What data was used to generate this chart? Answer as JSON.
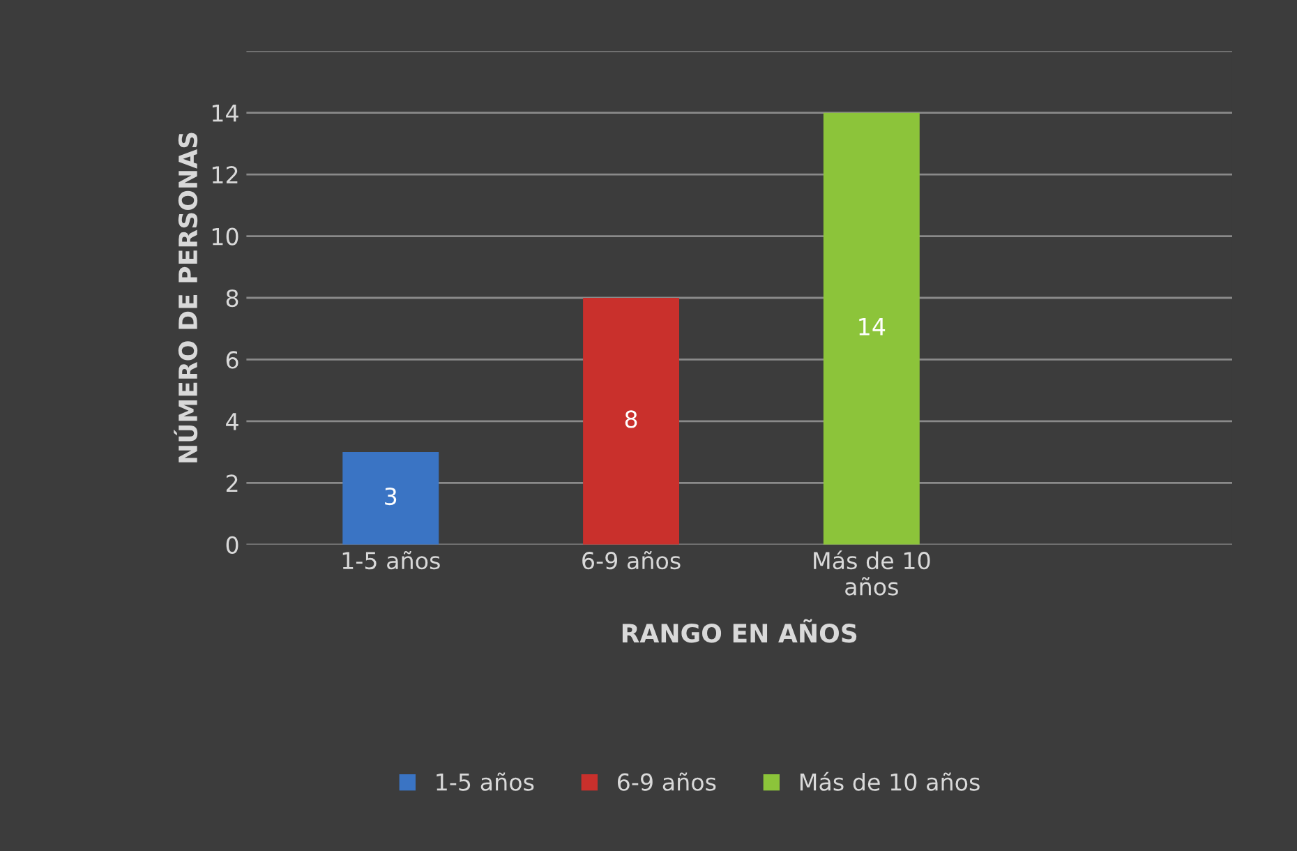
{
  "chart_data": {
    "type": "bar",
    "xlabel": "RANGO EN AÑOS",
    "ylabel": "NÚMERO DE PERSONAS",
    "categories": [
      "1-5 años",
      "6-9 años",
      "Más de 10\naños"
    ],
    "series": [
      {
        "name": "1-5 años",
        "color": "#3a74c4",
        "values": [
          3,
          null,
          null
        ]
      },
      {
        "name": "6-9 años",
        "color": "#c9302c",
        "values": [
          null,
          8,
          null
        ]
      },
      {
        "name": "Más de 10 años",
        "color": "#8cc43a",
        "values": [
          null,
          null,
          14
        ]
      }
    ],
    "ylim": [
      0,
      16
    ],
    "yticks": [
      0,
      2,
      4,
      6,
      8,
      10,
      12,
      14,
      {
        "value": 16,
        "label": null
      }
    ],
    "grid": "y",
    "legend": "bottom",
    "data_labels": true
  }
}
